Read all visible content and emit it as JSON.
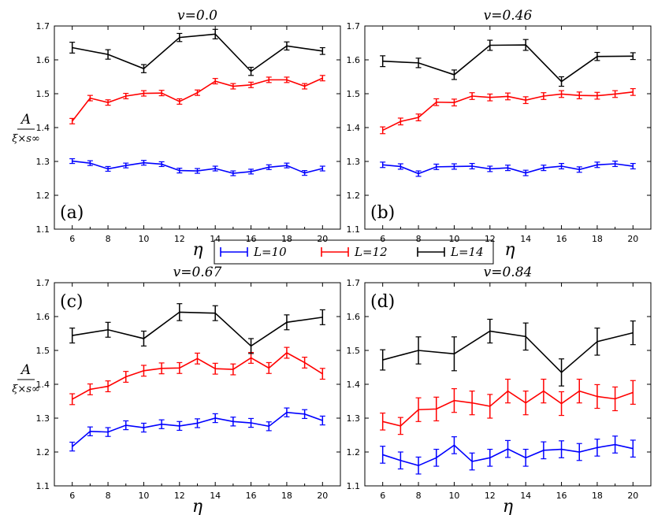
{
  "figure": {
    "ylabel_numerator": "A",
    "ylabel_denominator": "ξ×s∞",
    "legend": [
      {
        "label": "L=10",
        "color": "#0000ff"
      },
      {
        "label": "L=12",
        "color": "#ff0000"
      },
      {
        "label": "L=14",
        "color": "#000000"
      }
    ]
  },
  "chart_data": [
    {
      "type": "line",
      "panel": "(a)",
      "title": "v=0.0",
      "xlabel": "η",
      "xlim": [
        5,
        21
      ],
      "ylim": [
        1.1,
        1.7
      ],
      "xticks": [
        6,
        8,
        10,
        12,
        14,
        16,
        18,
        20
      ],
      "yticks": [
        1.1,
        1.2,
        1.3,
        1.4,
        1.5,
        1.6,
        1.7
      ],
      "series": [
        {
          "name": "L=10",
          "color": "#0000ff",
          "x": [
            6,
            7,
            8,
            9,
            10,
            11,
            12,
            13,
            14,
            15,
            16,
            17,
            18,
            19,
            20
          ],
          "y": [
            1.301,
            1.295,
            1.278,
            1.288,
            1.296,
            1.292,
            1.273,
            1.272,
            1.279,
            1.265,
            1.27,
            1.283,
            1.288,
            1.266,
            1.279
          ],
          "err": [
            0.007,
            0.007,
            0.007,
            0.007,
            0.007,
            0.007,
            0.007,
            0.007,
            0.007,
            0.007,
            0.007,
            0.007,
            0.007,
            0.007,
            0.007
          ]
        },
        {
          "name": "L=12",
          "color": "#ff0000",
          "x": [
            6,
            7,
            8,
            9,
            10,
            11,
            12,
            13,
            14,
            15,
            16,
            17,
            18,
            19,
            20
          ],
          "y": [
            1.419,
            1.487,
            1.474,
            1.493,
            1.501,
            1.502,
            1.477,
            1.503,
            1.537,
            1.522,
            1.526,
            1.541,
            1.541,
            1.522,
            1.546
          ],
          "err": [
            0.008,
            0.008,
            0.008,
            0.008,
            0.008,
            0.008,
            0.008,
            0.008,
            0.008,
            0.008,
            0.008,
            0.008,
            0.008,
            0.008,
            0.008
          ]
        },
        {
          "name": "L=14",
          "color": "#000000",
          "x": [
            6,
            8,
            10,
            12,
            14,
            16,
            18,
            20
          ],
          "y": [
            1.636,
            1.616,
            1.574,
            1.666,
            1.676,
            1.566,
            1.641,
            1.626
          ],
          "err": [
            0.016,
            0.014,
            0.012,
            0.012,
            0.014,
            0.012,
            0.012,
            0.01
          ]
        }
      ]
    },
    {
      "type": "line",
      "panel": "(b)",
      "title": "v=0.46",
      "xlabel": "η",
      "xlim": [
        5,
        21
      ],
      "ylim": [
        1.1,
        1.7
      ],
      "xticks": [
        6,
        8,
        10,
        12,
        14,
        16,
        18,
        20
      ],
      "yticks": [
        1.1,
        1.2,
        1.3,
        1.4,
        1.5,
        1.6,
        1.7
      ],
      "series": [
        {
          "name": "L=10",
          "color": "#0000ff",
          "x": [
            6,
            7,
            8,
            9,
            10,
            11,
            12,
            13,
            14,
            15,
            16,
            17,
            18,
            19,
            20
          ],
          "y": [
            1.29,
            1.285,
            1.264,
            1.284,
            1.285,
            1.286,
            1.278,
            1.281,
            1.266,
            1.281,
            1.286,
            1.276,
            1.29,
            1.293,
            1.286
          ],
          "err": [
            0.008,
            0.008,
            0.008,
            0.008,
            0.008,
            0.008,
            0.008,
            0.008,
            0.008,
            0.008,
            0.008,
            0.008,
            0.008,
            0.008,
            0.008
          ]
        },
        {
          "name": "L=12",
          "color": "#ff0000",
          "x": [
            6,
            7,
            8,
            9,
            10,
            11,
            12,
            13,
            14,
            15,
            16,
            17,
            18,
            19,
            20
          ],
          "y": [
            1.392,
            1.418,
            1.43,
            1.475,
            1.474,
            1.493,
            1.489,
            1.492,
            1.481,
            1.493,
            1.499,
            1.495,
            1.494,
            1.499,
            1.505
          ],
          "err": [
            0.01,
            0.01,
            0.01,
            0.01,
            0.01,
            0.01,
            0.01,
            0.01,
            0.01,
            0.01,
            0.01,
            0.01,
            0.01,
            0.01,
            0.01
          ]
        },
        {
          "name": "L=14",
          "color": "#000000",
          "x": [
            6,
            8,
            10,
            12,
            14,
            16,
            18,
            20
          ],
          "y": [
            1.596,
            1.591,
            1.556,
            1.643,
            1.644,
            1.536,
            1.61,
            1.611
          ],
          "err": [
            0.016,
            0.014,
            0.014,
            0.015,
            0.016,
            0.014,
            0.012,
            0.01
          ]
        }
      ]
    },
    {
      "type": "line",
      "panel": "(c)",
      "title": "v=0.67",
      "xlabel": "η",
      "xlim": [
        5,
        21
      ],
      "ylim": [
        1.1,
        1.7
      ],
      "xticks": [
        6,
        8,
        10,
        12,
        14,
        16,
        18,
        20
      ],
      "yticks": [
        1.1,
        1.2,
        1.3,
        1.4,
        1.5,
        1.6,
        1.7
      ],
      "series": [
        {
          "name": "L=10",
          "color": "#0000ff",
          "x": [
            6,
            7,
            8,
            9,
            10,
            11,
            12,
            13,
            14,
            15,
            16,
            17,
            18,
            19,
            20
          ],
          "y": [
            1.216,
            1.261,
            1.259,
            1.279,
            1.272,
            1.282,
            1.277,
            1.285,
            1.3,
            1.29,
            1.286,
            1.276,
            1.317,
            1.312,
            1.293
          ],
          "err": [
            0.013,
            0.013,
            0.013,
            0.013,
            0.013,
            0.013,
            0.013,
            0.013,
            0.013,
            0.013,
            0.013,
            0.013,
            0.013,
            0.013,
            0.013
          ]
        },
        {
          "name": "L=12",
          "color": "#ff0000",
          "x": [
            6,
            7,
            8,
            9,
            10,
            11,
            12,
            13,
            14,
            15,
            16,
            17,
            18,
            19,
            20
          ],
          "y": [
            1.356,
            1.385,
            1.394,
            1.422,
            1.44,
            1.447,
            1.448,
            1.476,
            1.446,
            1.444,
            1.478,
            1.448,
            1.493,
            1.464,
            1.431
          ],
          "err": [
            0.016,
            0.016,
            0.016,
            0.016,
            0.016,
            0.016,
            0.016,
            0.016,
            0.016,
            0.016,
            0.016,
            0.016,
            0.016,
            0.016,
            0.016
          ]
        },
        {
          "name": "L=14",
          "color": "#000000",
          "x": [
            6,
            8,
            10,
            12,
            14,
            16,
            18,
            20
          ],
          "y": [
            1.544,
            1.561,
            1.535,
            1.613,
            1.61,
            1.513,
            1.583,
            1.598
          ],
          "err": [
            0.022,
            0.022,
            0.022,
            0.025,
            0.022,
            0.022,
            0.022,
            0.022
          ]
        }
      ]
    },
    {
      "type": "line",
      "panel": "(d)",
      "title": "v=0.84",
      "xlabel": "η",
      "xlim": [
        5,
        21
      ],
      "ylim": [
        1.1,
        1.7
      ],
      "xticks": [
        6,
        8,
        10,
        12,
        14,
        16,
        18,
        20
      ],
      "yticks": [
        1.1,
        1.2,
        1.3,
        1.4,
        1.5,
        1.6,
        1.7
      ],
      "series": [
        {
          "name": "L=10",
          "color": "#0000ff",
          "x": [
            6,
            7,
            8,
            9,
            10,
            11,
            12,
            13,
            14,
            15,
            16,
            17,
            18,
            19,
            20
          ],
          "y": [
            1.192,
            1.175,
            1.16,
            1.183,
            1.22,
            1.172,
            1.183,
            1.209,
            1.183,
            1.205,
            1.208,
            1.2,
            1.213,
            1.222,
            1.21
          ],
          "err": [
            0.025,
            0.025,
            0.025,
            0.025,
            0.025,
            0.025,
            0.025,
            0.025,
            0.025,
            0.025,
            0.025,
            0.025,
            0.025,
            0.025,
            0.025
          ]
        },
        {
          "name": "L=12",
          "color": "#ff0000",
          "x": [
            6,
            7,
            8,
            9,
            10,
            11,
            12,
            13,
            14,
            15,
            16,
            17,
            18,
            19,
            20
          ],
          "y": [
            1.29,
            1.277,
            1.325,
            1.327,
            1.352,
            1.345,
            1.335,
            1.38,
            1.345,
            1.38,
            1.343,
            1.38,
            1.364,
            1.357,
            1.376
          ],
          "err": [
            0.025,
            0.025,
            0.035,
            0.035,
            0.035,
            0.035,
            0.035,
            0.035,
            0.035,
            0.035,
            0.035,
            0.035,
            0.035,
            0.035,
            0.035
          ]
        },
        {
          "name": "L=14",
          "color": "#000000",
          "x": [
            6,
            8,
            10,
            12,
            14,
            16,
            18,
            20
          ],
          "y": [
            1.472,
            1.5,
            1.49,
            1.557,
            1.541,
            1.435,
            1.526,
            1.552
          ],
          "err": [
            0.03,
            0.04,
            0.05,
            0.035,
            0.04,
            0.04,
            0.04,
            0.035
          ]
        }
      ]
    }
  ]
}
